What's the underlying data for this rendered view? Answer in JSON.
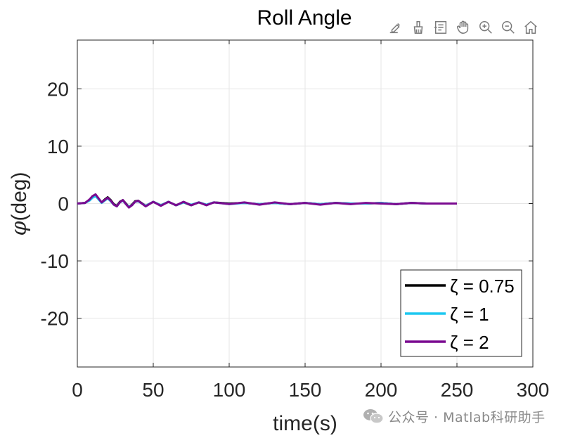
{
  "chart_data": {
    "type": "line",
    "title": "Roll Angle",
    "xlabel": "time(s)",
    "ylabel_symbol": "φ",
    "ylabel_unit": "(deg)",
    "xlim": [
      0,
      300
    ],
    "ylim": [
      -28.5,
      28.5
    ],
    "xticks": [
      0,
      50,
      100,
      150,
      200,
      250,
      300
    ],
    "yticks": [
      -20,
      -10,
      0,
      10,
      20
    ],
    "xtick_labels": [
      "0",
      "50",
      "100",
      "150",
      "200",
      "250",
      "300"
    ],
    "ytick_labels": [
      "-20",
      "-10",
      "0",
      "10",
      "20"
    ],
    "grid": true,
    "legend_position": "bottom-right",
    "x": [
      0,
      5,
      8,
      10,
      12,
      14,
      16,
      18,
      20,
      22,
      24,
      26,
      28,
      30,
      32,
      34,
      36,
      38,
      40,
      45,
      50,
      55,
      60,
      65,
      70,
      75,
      80,
      85,
      90,
      100,
      110,
      120,
      130,
      140,
      150,
      160,
      170,
      180,
      190,
      200,
      210,
      220,
      230,
      240,
      250
    ],
    "series": [
      {
        "name": "ζ = 0.75",
        "color": "#000000",
        "values": [
          0,
          0.1,
          0.6,
          1.2,
          1.5,
          0.8,
          0.2,
          0.7,
          1.1,
          0.6,
          -0.1,
          -0.4,
          0.3,
          0.6,
          0.0,
          -0.6,
          -0.2,
          0.4,
          0.5,
          -0.4,
          0.3,
          -0.3,
          0.3,
          -0.3,
          0.2,
          -0.3,
          0.2,
          -0.2,
          0.2,
          0.0,
          0.1,
          -0.1,
          0.1,
          -0.1,
          0.1,
          -0.1,
          0.1,
          0.0,
          0.0,
          0.1,
          -0.1,
          0.1,
          0.0,
          0.0,
          0.0
        ]
      },
      {
        "name": "ζ = 1",
        "color": "#1ec8f0",
        "values": [
          0,
          0.1,
          0.5,
          1.0,
          1.3,
          0.7,
          0.1,
          0.5,
          0.9,
          0.4,
          -0.2,
          -0.5,
          0.2,
          0.5,
          -0.1,
          -0.6,
          -0.3,
          0.3,
          0.4,
          -0.4,
          0.3,
          -0.3,
          0.3,
          -0.3,
          0.2,
          -0.2,
          0.2,
          -0.2,
          0.2,
          -0.1,
          0.1,
          -0.1,
          0.1,
          -0.1,
          0.1,
          -0.1,
          0.1,
          0.0,
          0.0,
          0.1,
          -0.1,
          0.1,
          0.0,
          0.0,
          0.0
        ]
      },
      {
        "name": "ζ = 2",
        "color": "#7a0a90",
        "values": [
          0,
          0.1,
          0.7,
          1.3,
          1.6,
          0.9,
          0.2,
          0.6,
          1.0,
          0.5,
          -0.2,
          -0.5,
          0.2,
          0.6,
          -0.1,
          -0.7,
          -0.3,
          0.3,
          0.5,
          -0.5,
          0.3,
          -0.4,
          0.3,
          -0.3,
          0.3,
          -0.3,
          0.2,
          -0.3,
          0.2,
          -0.1,
          0.2,
          -0.2,
          0.2,
          -0.1,
          0.1,
          -0.2,
          0.1,
          -0.1,
          0.1,
          0.0,
          -0.1,
          0.1,
          0.0,
          0.0,
          0.0
        ]
      }
    ]
  },
  "toolbar": {
    "icons": [
      "brush-data-icon",
      "clean-icon",
      "data-tips-icon",
      "pan-icon",
      "zoom-in-icon",
      "zoom-out-icon",
      "home-icon"
    ]
  },
  "watermark": {
    "text": "公众号 · Matlab科研助手"
  }
}
